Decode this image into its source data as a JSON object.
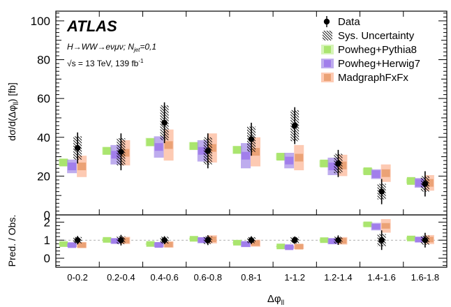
{
  "chart_data": {
    "type": "scatter",
    "experiment": "ATLAS",
    "process": "H→WW→eνμν; N",
    "process_sub": "jet",
    "process_suffix": "=0,1",
    "energy": "√s = 13 TeV, 139 fb",
    "energy_sup": "-1",
    "ylabel": "dσ/d(Δφ",
    "ylabel_sub": "ll",
    "ylabel_suffix": ") [fb]",
    "ratio_ylabel": "Pred. / Obs.",
    "xlabel": "Δφ",
    "xlabel_sub": "ll",
    "categories": [
      "0-0.2",
      "0.2-0.4",
      "0.4-0.6",
      "0.6-0.8",
      "0.8-1",
      "1-1.2",
      "1.2-1.4",
      "1.4-1.6",
      "1.6-1.8"
    ],
    "ylim": [
      0,
      105
    ],
    "yticks": [
      "0",
      "20",
      "40",
      "60",
      "80",
      "100"
    ],
    "ratio_ylim": [
      -0.5,
      2.4
    ],
    "ratio_yticks": [
      "0",
      "1",
      "2"
    ],
    "data": {
      "name": "Data",
      "values": [
        34.5,
        32.5,
        47.5,
        33,
        39,
        46,
        26.5,
        12,
        16
      ],
      "err": [
        8,
        9.5,
        10.5,
        9,
        8.5,
        9.5,
        7,
        6.5,
        6.5
      ],
      "sys": [
        6,
        7,
        9,
        7,
        6.5,
        8,
        5,
        4,
        4
      ],
      "sys_name": "Sys. Uncertainty"
    },
    "predictions": [
      {
        "name": "Powheg+Pythia8",
        "color": "#c8f0a0",
        "values": [
          27,
          33,
          37.5,
          35.5,
          33.5,
          30,
          26.5,
          22.5,
          17.5
        ],
        "err": [
          1.8,
          2,
          2.2,
          2,
          2,
          1.8,
          1.7,
          1.5,
          1.3
        ]
      },
      {
        "name": "Powheg+Herwig7",
        "color": "#a890e8",
        "values": [
          25,
          31,
          35,
          33,
          30.5,
          28,
          25,
          21,
          16.5
        ],
        "err": [
          3.5,
          5,
          5.5,
          5.5,
          6.5,
          4,
          4.5,
          2.5,
          2.5
        ]
      },
      {
        "name": "MadgraphFxFx",
        "color": "#fcb89a",
        "values": [
          25,
          32,
          36,
          34.5,
          32.5,
          29.5,
          25.5,
          21.5,
          16.5
        ],
        "err": [
          5.5,
          6.5,
          8,
          7.5,
          7.5,
          6.5,
          5.5,
          4.5,
          4
        ]
      }
    ]
  }
}
